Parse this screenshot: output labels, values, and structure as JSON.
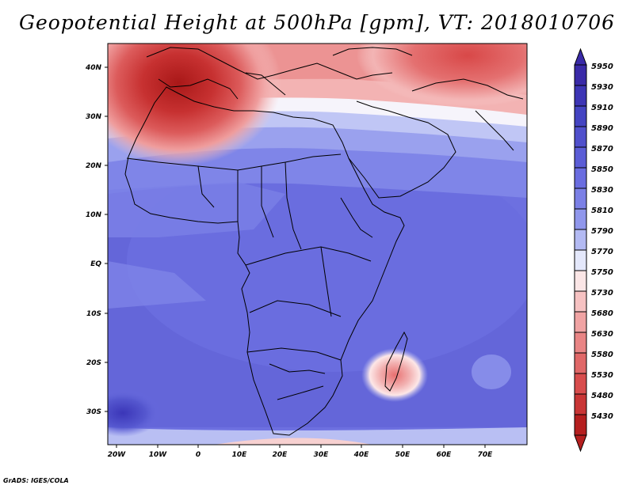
{
  "title": "Geopotential Height at 500hPa [gpm], VT: 2018010706",
  "footer": "GrADS: IGES/COLA",
  "map": {
    "lon_range": [
      -22,
      80
    ],
    "lat_range": [
      -37,
      46
    ],
    "lon_ticks": [
      "20W",
      "10W",
      "0",
      "10E",
      "20E",
      "30E",
      "40E",
      "50E",
      "60E",
      "70E"
    ],
    "lat_ticks": [
      "40N",
      "30N",
      "20N",
      "10N",
      "EQ",
      "10S",
      "20S",
      "30S"
    ]
  },
  "colorbar": {
    "levels": [
      "5950",
      "5930",
      "5910",
      "5890",
      "5870",
      "5850",
      "5830",
      "5810",
      "5790",
      "5770",
      "5750",
      "5730",
      "5680",
      "5630",
      "5580",
      "5530",
      "5480",
      "5430"
    ],
    "colors": [
      "#3a2aa8",
      "#3d35b5",
      "#4444c2",
      "#5050cc",
      "#5b5dd6",
      "#6a6de0",
      "#7b80e6",
      "#9097ec",
      "#b3baf3",
      "#e4e8fb",
      "#fbe6e6",
      "#f6c2c2",
      "#f0a3a3",
      "#e98585",
      "#e06868",
      "#d84d4d",
      "#c93636",
      "#b51f1f"
    ]
  }
}
